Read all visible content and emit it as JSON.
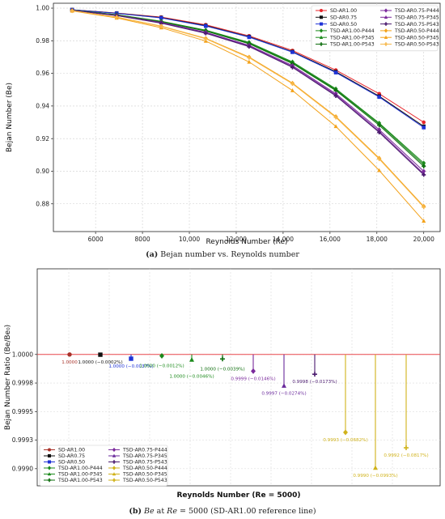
{
  "chart_data": [
    {
      "type": "line",
      "xlabel": "Reynolds Number (Re)",
      "ylabel": "Bejan Number (Be)",
      "xlim": [
        4200,
        20700
      ],
      "ylim": [
        0.863,
        1.003
      ],
      "xticks": [
        6000,
        8000,
        10000,
        12000,
        14000,
        16000,
        18000,
        20000
      ],
      "xtick_labels": [
        "6000",
        "8000",
        "10,000",
        "12,000",
        "14,000",
        "16,000",
        "18,000",
        "20,000"
      ],
      "yticks": [
        0.88,
        0.9,
        0.92,
        0.94,
        0.96,
        0.98,
        1.0
      ],
      "ytick_labels": [
        "0.88",
        "0.90",
        "0.92",
        "0.94",
        "0.96",
        "0.98",
        "1.00"
      ],
      "grid": true,
      "legend_position": "top-right",
      "x": [
        5000,
        6900,
        8800,
        10700,
        12550,
        14400,
        16250,
        18100,
        20000
      ],
      "series": [
        {
          "name": "SD-AR1.00",
          "color": "#e8262b",
          "marker": "circle",
          "values": [
            0.999,
            0.997,
            0.9945,
            0.9898,
            0.983,
            0.974,
            0.962,
            0.9475,
            0.93
          ]
        },
        {
          "name": "SD-AR0.75",
          "color": "#111111",
          "marker": "square",
          "values": [
            0.999,
            0.9969,
            0.9942,
            0.9893,
            0.9825,
            0.9733,
            0.961,
            0.946,
            0.9275
          ]
        },
        {
          "name": "SD-AR0.50",
          "color": "#1f33d6",
          "marker": "square",
          "values": [
            0.999,
            0.9968,
            0.994,
            0.989,
            0.9822,
            0.973,
            0.9605,
            0.9455,
            0.9268
          ]
        },
        {
          "name": "TSD-AR1.00-P444",
          "color": "#1b8a1b",
          "marker": "diamond",
          "values": [
            0.9988,
            0.996,
            0.992,
            0.9865,
            0.979,
            0.967,
            0.9505,
            0.9295,
            0.905
          ]
        },
        {
          "name": "TSD-AR1.00-P345",
          "color": "#1b8a1b",
          "marker": "triangle",
          "values": [
            0.9988,
            0.9959,
            0.9918,
            0.9862,
            0.9786,
            0.9665,
            0.95,
            0.929,
            0.904
          ]
        },
        {
          "name": "TSD-AR1.00-P543",
          "color": "#0e6e0e",
          "marker": "plus",
          "values": [
            0.9988,
            0.9958,
            0.9916,
            0.9859,
            0.9782,
            0.966,
            0.9495,
            0.9282,
            0.903
          ]
        },
        {
          "name": "TSD-AR0.75-P444",
          "color": "#7b2a9c",
          "marker": "diamond",
          "values": [
            0.9987,
            0.9956,
            0.9912,
            0.9852,
            0.9772,
            0.9648,
            0.9475,
            0.9255,
            0.9
          ]
        },
        {
          "name": "TSD-AR0.75-P345",
          "color": "#7b2a9c",
          "marker": "triangle",
          "values": [
            0.9987,
            0.9955,
            0.991,
            0.9849,
            0.9768,
            0.9642,
            0.9468,
            0.9245,
            0.8985
          ]
        },
        {
          "name": "TSD-AR0.75-P543",
          "color": "#4a1a6e",
          "marker": "plus",
          "values": [
            0.9987,
            0.9954,
            0.9908,
            0.9846,
            0.9764,
            0.9637,
            0.9462,
            0.9238,
            0.8978
          ]
        },
        {
          "name": "TSD-AR0.50-P444",
          "color": "#f3a21a",
          "marker": "diamond",
          "values": [
            0.9984,
            0.9945,
            0.989,
            0.9815,
            0.97,
            0.954,
            0.9335,
            0.908,
            0.8785
          ]
        },
        {
          "name": "TSD-AR0.50-P345",
          "color": "#f3a21a",
          "marker": "triangle",
          "values": [
            0.9983,
            0.994,
            0.988,
            0.9798,
            0.967,
            0.9495,
            0.9275,
            0.9005,
            0.8695
          ]
        },
        {
          "name": "TSD-AR0.50-P543",
          "color": "#f7b84a",
          "marker": "plus",
          "values": [
            0.9984,
            0.9944,
            0.9888,
            0.9812,
            0.9696,
            0.9536,
            0.933,
            0.9075,
            0.878
          ]
        }
      ]
    },
    {
      "type": "scatter",
      "xlabel": "Reynolds Number (Re = 5000)",
      "ylabel": "Bejan Number Ratio (Be/Be₀)",
      "ylim": [
        0.99885,
        1.00075
      ],
      "yticks": [
        0.999,
        0.99925,
        0.9995,
        0.99975,
        1.0
      ],
      "ytick_labels": [
        "0.9990",
        "0.9993",
        "0.9995",
        "0.9998",
        "1.0000"
      ],
      "reference_line": 1.0,
      "grid": true,
      "legend_position": "bottom-left",
      "points": [
        {
          "name": "SD-AR1.00",
          "color": "#a8322a",
          "marker": "circle",
          "value": 1.0,
          "label": "1.0000"
        },
        {
          "name": "SD-AR0.75",
          "color": "#111111",
          "marker": "square",
          "value": 0.999998,
          "label": "1.0000 (−0.0002%)"
        },
        {
          "name": "SD-AR0.50",
          "color": "#1f33d6",
          "marker": "square",
          "value": 0.999963,
          "label": "1.0000 (−0.0037%)"
        },
        {
          "name": "TSD-AR1.00-P444",
          "color": "#1b8a1b",
          "marker": "diamond",
          "value": 0.999988,
          "label": "1.0000 (−0.0012%)"
        },
        {
          "name": "TSD-AR1.00-P345",
          "color": "#1b8a1b",
          "marker": "triangle",
          "value": 0.999954,
          "label": "1.0000 (−0.0046%)"
        },
        {
          "name": "TSD-AR1.00-P543",
          "color": "#0e6e0e",
          "marker": "plus",
          "value": 0.999961,
          "label": "1.0000 (−0.0039%)"
        },
        {
          "name": "TSD-AR0.75-P444",
          "color": "#7b2a9c",
          "marker": "diamond",
          "value": 0.999854,
          "label": "0.9999 (−0.0146%)"
        },
        {
          "name": "TSD-AR0.75-P345",
          "color": "#6a2a9c",
          "marker": "triangle",
          "value": 0.999726,
          "label": "0.9997 (−0.0274%)"
        },
        {
          "name": "TSD-AR0.75-P543",
          "color": "#4a1a6e",
          "marker": "plus",
          "value": 0.999827,
          "label": "0.9998 (−0.0173%)"
        },
        {
          "name": "TSD-AR0.50-P444",
          "color": "#d0b21a",
          "marker": "diamond",
          "value": 0.999318,
          "label": "0.9993 (−0.0682%)"
        },
        {
          "name": "TSD-AR0.50-P345",
          "color": "#d0b21a",
          "marker": "triangle",
          "value": 0.999007,
          "label": "0.9990 (−0.0993%)"
        },
        {
          "name": "TSD-AR0.50-P543",
          "color": "#d0b21a",
          "marker": "plus",
          "value": 0.999183,
          "label": "0.9992 (−0.0817%)"
        }
      ]
    }
  ],
  "captions": {
    "a": {
      "tag": "(a)",
      "text": "Bejan number vs. Reynolds number"
    },
    "b": {
      "tag": "(b)",
      "be": "Be",
      "at": " at ",
      "re": "Re",
      "text": " = 5000 (SD-AR1.00 reference line)"
    }
  }
}
